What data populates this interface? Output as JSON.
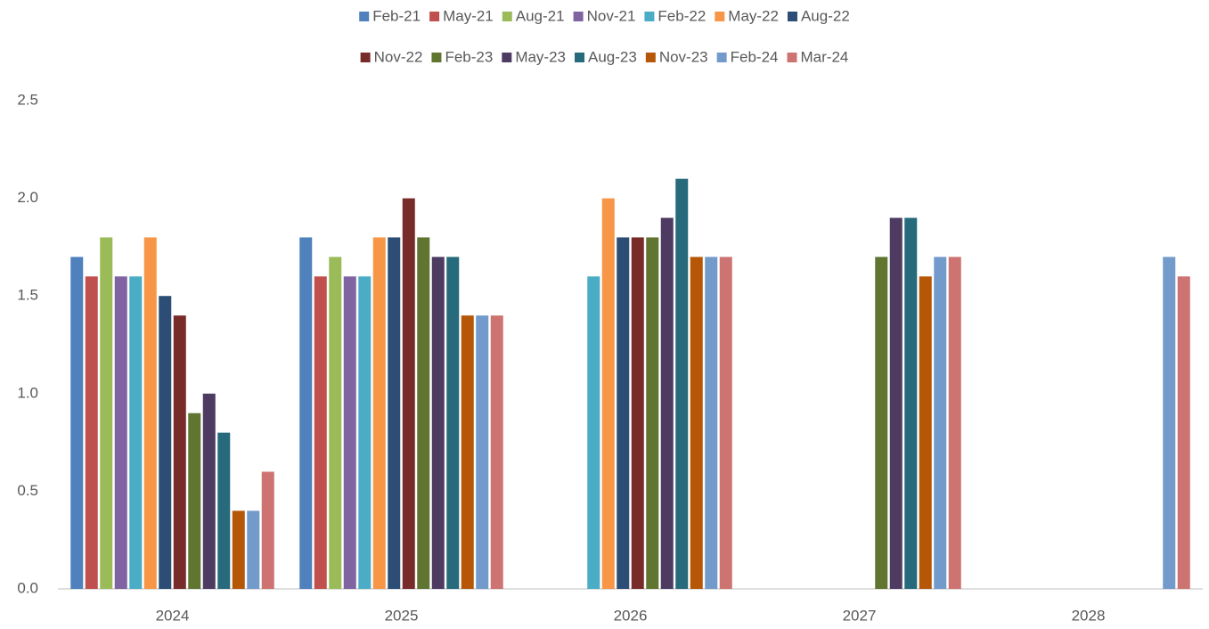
{
  "chart_data": {
    "type": "bar",
    "categories": [
      "2024",
      "2025",
      "2026",
      "2027",
      "2028"
    ],
    "series": [
      {
        "name": "Feb-21",
        "color": "#4f81bd",
        "values": [
          1.7,
          1.8,
          null,
          null,
          null
        ]
      },
      {
        "name": "May-21",
        "color": "#c0504d",
        "values": [
          1.6,
          1.6,
          null,
          null,
          null
        ]
      },
      {
        "name": "Aug-21",
        "color": "#9bbb59",
        "values": [
          1.8,
          1.7,
          null,
          null,
          null
        ]
      },
      {
        "name": "Nov-21",
        "color": "#8064a2",
        "values": [
          1.6,
          1.6,
          null,
          null,
          null
        ]
      },
      {
        "name": "Feb-22",
        "color": "#4bacc6",
        "values": [
          1.6,
          1.6,
          1.6,
          null,
          null
        ]
      },
      {
        "name": "May-22",
        "color": "#f79646",
        "values": [
          1.8,
          1.8,
          2.0,
          null,
          null
        ]
      },
      {
        "name": "Aug-22",
        "color": "#2c4d75",
        "values": [
          1.5,
          1.8,
          1.8,
          null,
          null
        ]
      },
      {
        "name": "Nov-22",
        "color": "#772c2a",
        "values": [
          1.4,
          2.0,
          1.8,
          null,
          null
        ]
      },
      {
        "name": "Feb-23",
        "color": "#5f7530",
        "values": [
          0.9,
          1.8,
          1.8,
          1.7,
          null
        ]
      },
      {
        "name": "May-23",
        "color": "#4d3b62",
        "values": [
          1.0,
          1.7,
          1.9,
          1.9,
          null
        ]
      },
      {
        "name": "Aug-23",
        "color": "#276a7c",
        "values": [
          0.8,
          1.7,
          2.1,
          1.9,
          null
        ]
      },
      {
        "name": "Nov-23",
        "color": "#b65708",
        "values": [
          0.4,
          1.4,
          1.7,
          1.6,
          null
        ]
      },
      {
        "name": "Feb-24",
        "color": "#729aca",
        "values": [
          0.4,
          1.4,
          1.7,
          1.7,
          1.7
        ]
      },
      {
        "name": "Mar-24",
        "color": "#cd7371",
        "values": [
          0.6,
          1.4,
          1.7,
          1.7,
          1.6
        ]
      }
    ],
    "ylim": [
      0,
      2.5
    ],
    "yticks": [
      {
        "value": 0,
        "label": "0.0"
      },
      0.5,
      {
        "value": 1,
        "label": "1.0"
      },
      1.5,
      {
        "value": 2,
        "label": "2.0"
      },
      2.5
    ],
    "grid": false,
    "legend": "top"
  }
}
